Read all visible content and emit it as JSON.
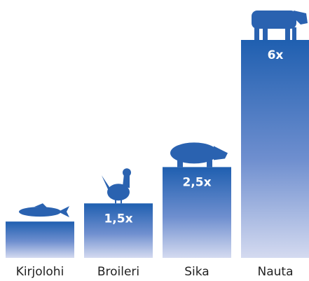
{
  "chart_data": {
    "type": "bar",
    "categories": [
      "Kirjolohi",
      "Broileri",
      "Sika",
      "Nauta"
    ],
    "values": [
      1,
      1.5,
      2.5,
      6
    ],
    "value_labels": [
      null,
      "1,5x",
      "2,5x",
      "6x"
    ],
    "color": "#1f5fb0"
  }
}
